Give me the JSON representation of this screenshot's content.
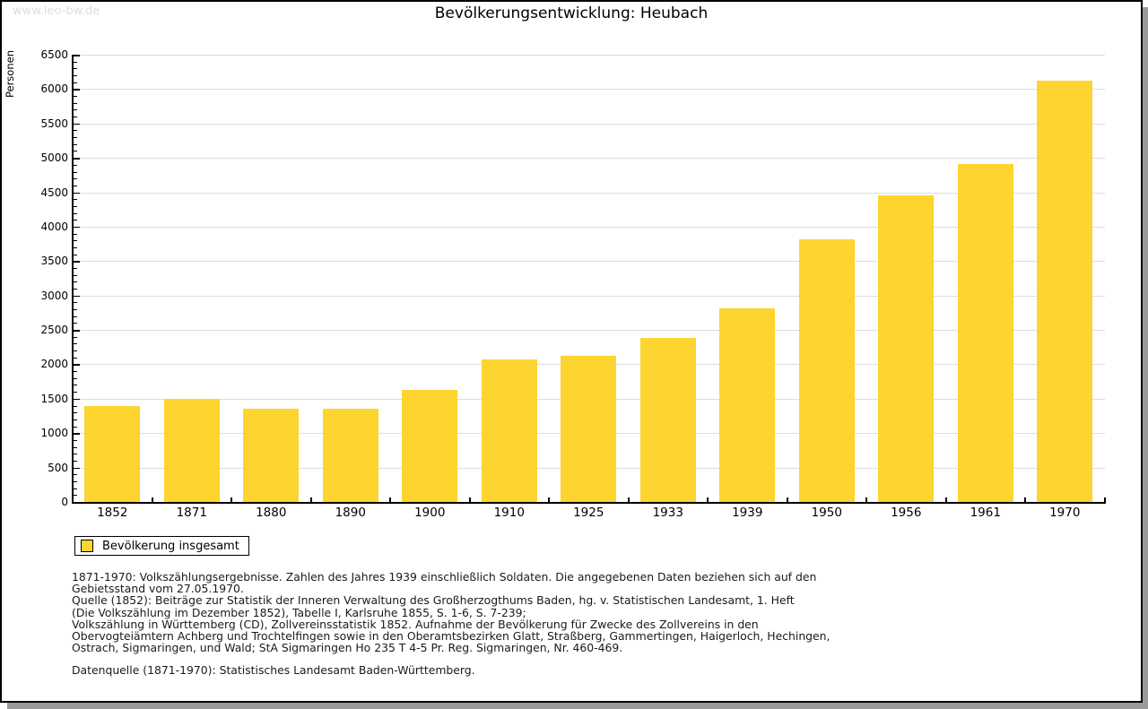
{
  "watermark": "www.leo-bw.de",
  "title": "Bevölkerungsentwicklung: Heubach",
  "legend": {
    "label": "Bevölkerung insgesamt",
    "swatch_color": "#FDD430"
  },
  "chart_data": {
    "type": "bar",
    "title": "Bevölkerungsentwicklung: Heubach",
    "xlabel": "",
    "ylabel": "Personen",
    "categories": [
      "1852",
      "1871",
      "1880",
      "1890",
      "1900",
      "1910",
      "1925",
      "1933",
      "1939",
      "1950",
      "1956",
      "1961",
      "1970"
    ],
    "values": [
      1400,
      1500,
      1360,
      1360,
      1630,
      2070,
      2120,
      2390,
      2815,
      3820,
      4460,
      4915,
      6125
    ],
    "ylim": [
      0,
      6500
    ],
    "ytick_step": 500,
    "yminor_step": 100,
    "grid": true,
    "legend_entries": [
      "Bevölkerung insgesamt"
    ],
    "legend_position": "bottom-left",
    "bar_color": "#FDD430",
    "grid_color": "#DDDDDD",
    "axis_color": "#000000"
  },
  "footnotes": {
    "lines": [
      "1871-1970: Volkszählungsergebnisse. Zahlen des Jahres 1939 einschließlich Soldaten. Die angegebenen Daten beziehen sich auf den",
      "Gebietsstand vom 27.05.1970.",
      "Quelle (1852): Beiträge zur Statistik der Inneren Verwaltung des Großherzogthums Baden, hg. v. Statistischen Landesamt, 1. Heft",
      "(Die Volkszählung im Dezember 1852), Tabelle I, Karlsruhe 1855, S. 1-6, S. 7-239;",
      "Volkszählung in Württemberg (CD), Zollvereinsstatistik 1852. Aufnahme der Bevölkerung für Zwecke des Zollvereins in den",
      "Obervogteiämtern Achberg und Trochtelfingen sowie in den Oberamtsbezirken Glatt, Straßberg, Gammertingen, Haigerloch, Hechingen,",
      "Ostrach, Sigmaringen, und Wald; StA Sigmaringen Ho 235 T 4-5 Pr. Reg. Sigmaringen, Nr. 460-469."
    ],
    "datasource": "Datenquelle (1871-1970): Statistisches Landesamt Baden-Württemberg."
  },
  "colors": {
    "bar": "#FDD430",
    "grid": "#DDDDDD",
    "axis": "#000000",
    "watermark_text": "#DDDDDD",
    "shadow": "#9A9A9A",
    "page_border": "#000000"
  }
}
